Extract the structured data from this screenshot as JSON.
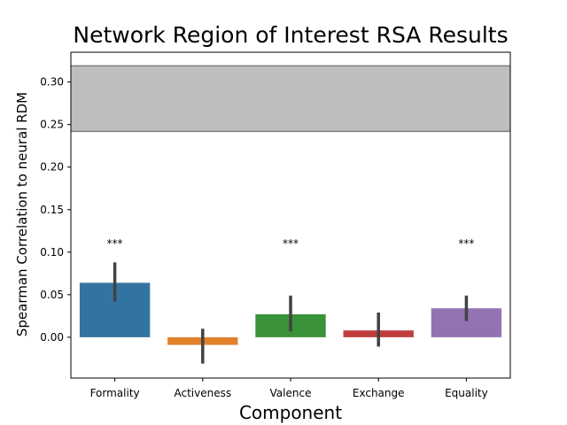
{
  "chart_data": {
    "type": "bar",
    "title": "Network Region of Interest RSA Results",
    "xlabel": "Component",
    "ylabel": "Spearman Correlation to neural RDM",
    "categories": [
      "Formality",
      "Activeness",
      "Valence",
      "Exchange",
      "Equality"
    ],
    "values": [
      0.064,
      -0.009,
      0.027,
      0.008,
      0.034
    ],
    "error_low": [
      0.042,
      -0.031,
      0.007,
      -0.011,
      0.019
    ],
    "error_high": [
      0.088,
      0.01,
      0.049,
      0.029,
      0.049
    ],
    "colors": [
      "#3274a1",
      "#e1812c",
      "#3a923a",
      "#c03d3e",
      "#9372b2"
    ],
    "error_color": "#424242",
    "significance": [
      "***",
      "",
      "***",
      "",
      "***"
    ],
    "significance_y": 0.105,
    "noise_ceiling": {
      "lower": 0.242,
      "upper": 0.319,
      "fill": "#bebebe",
      "edge": "#808080"
    },
    "yticks": [
      0.0,
      0.05,
      0.1,
      0.15,
      0.2,
      0.25,
      0.3
    ],
    "ytick_labels": [
      "0.00",
      "0.05",
      "0.10",
      "0.15",
      "0.20",
      "0.25",
      "0.30"
    ],
    "ylim": [
      -0.048,
      0.335
    ],
    "grid": false,
    "legend": "none"
  }
}
